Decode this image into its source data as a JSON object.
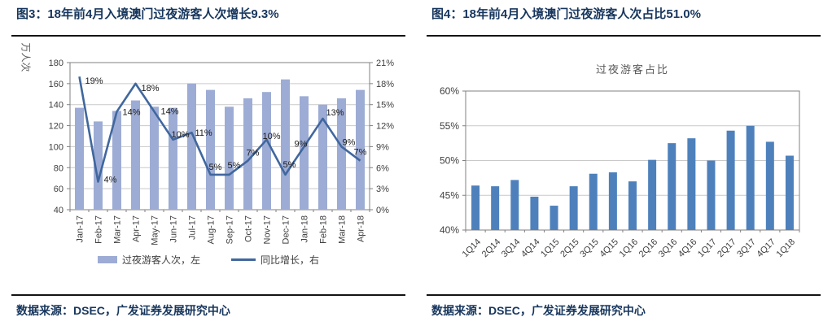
{
  "left_panel": {
    "title": "图3：18年前4月入境澳门过夜游客人次增长9.3%",
    "source": "数据来源：DSEC，广发证券发展研究中心"
  },
  "right_panel": {
    "title": "图4：18年前4月入境澳门过夜游客人次占比51.0%",
    "source": "数据来源：DSEC，广发证券发展研究中心"
  },
  "colors": {
    "title_navy": "#17365D",
    "rule_black": "#141414",
    "bar_light_blue": "#9DACD4",
    "line_blue": "#40679E",
    "bar_medium_blue": "#4E81BC",
    "grid_gray": "#C9C9C9",
    "axis_gray": "#808080",
    "tick_text": "#3F3F3F",
    "inner_title_gray": "#595959",
    "label_text": "#1A1A1A"
  },
  "chart_data": [
    {
      "type": "bar+line",
      "unit_label": "万人次",
      "categories": [
        "Jan-17",
        "Feb-17",
        "Mar-17",
        "Apr-17",
        "May-17",
        "Jun-17",
        "Jul-17",
        "Aug-17",
        "Sep-17",
        "Oct-17",
        "Nov-17",
        "Dec-17",
        "Jan-18",
        "Feb-18",
        "Mar-18",
        "Apr-18"
      ],
      "series": [
        {
          "name": "过夜游客人次，左",
          "type": "bar",
          "axis": "left",
          "values": [
            137,
            124,
            134,
            144,
            138,
            137,
            160,
            154,
            138,
            146,
            152,
            164,
            148,
            140,
            146,
            154
          ]
        },
        {
          "name": "同比增长，右",
          "type": "line",
          "axis": "right",
          "values_pct": [
            19,
            4,
            14,
            18,
            14,
            10,
            11,
            5,
            5,
            7,
            10,
            5,
            9,
            13,
            9,
            7
          ]
        }
      ],
      "point_labels": [
        "19%",
        "4%",
        "14%",
        "18%",
        "14%",
        "10%",
        "11%",
        "5%",
        "5%",
        "7%",
        "10%",
        "5%",
        "9%",
        "13%",
        "9%",
        "7%"
      ],
      "left_axis": {
        "min": 40,
        "max": 180,
        "step": 20,
        "tick_labels": [
          "180",
          "160",
          "140",
          "120",
          "100",
          "80",
          "60",
          "40"
        ]
      },
      "right_axis": {
        "min": 0,
        "max": 21,
        "step": 3,
        "tick_labels": [
          "21%",
          "18%",
          "15%",
          "12%",
          "9%",
          "6%",
          "3%",
          "0%"
        ]
      },
      "legend": [
        "过夜游客人次，左",
        "同比增长，右"
      ],
      "grid": true,
      "legend_position": "bottom"
    },
    {
      "type": "bar",
      "title": "过夜游客占比",
      "categories": [
        "1Q14",
        "2Q14",
        "3Q14",
        "4Q14",
        "1Q15",
        "2Q15",
        "3Q15",
        "4Q15",
        "1Q16",
        "2Q16",
        "3Q16",
        "4Q16",
        "1Q17",
        "2Q17",
        "3Q17",
        "4Q17",
        "1Q18"
      ],
      "values": [
        46.4,
        46.3,
        47.2,
        44.8,
        43.5,
        46.3,
        48.1,
        48.3,
        47.0,
        50.1,
        52.5,
        53.2,
        50.0,
        54.3,
        55.0,
        52.7,
        50.7
      ],
      "ylim": [
        40,
        60
      ],
      "ytick_labels": [
        "60%",
        "55%",
        "50%",
        "45%",
        "40%"
      ],
      "yticks": [
        60,
        55,
        50,
        45,
        40
      ],
      "grid": true
    }
  ]
}
